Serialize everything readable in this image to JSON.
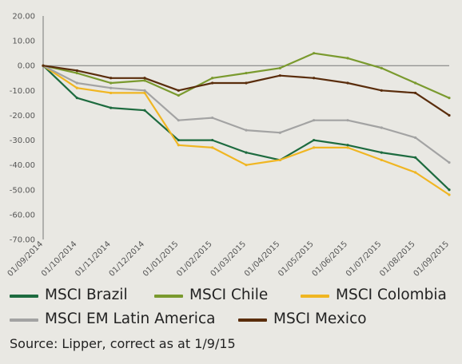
{
  "chart_data": {
    "type": "line",
    "title": "",
    "xlabel": "",
    "ylabel": "",
    "ylim": [
      -70,
      20
    ],
    "yticks": [
      "20.00",
      "10.00",
      "0.00",
      "-10.00",
      "-20.00",
      "-30.00",
      "-40.00",
      "-50.00",
      "-60.00",
      "-70.00"
    ],
    "x": [
      "01/09/2014",
      "01/10/2014",
      "01/11/2014",
      "01/12/2014",
      "01/01/2015",
      "01/02/2015",
      "01/03/2015",
      "01/04/2015",
      "01/05/2015",
      "01/06/2015",
      "01/07/2015",
      "01/08/2015",
      "01/09/2015"
    ],
    "grid": false,
    "legend_position": "bottom",
    "series": [
      {
        "name": "MSCI Brazil",
        "color": "#1d6b3f",
        "values": [
          0,
          -13,
          -17,
          -18,
          -30,
          -30,
          -35,
          -38,
          -30,
          -32,
          -35,
          -37,
          -50
        ]
      },
      {
        "name": "MSCI Chile",
        "color": "#7a9a2e",
        "values": [
          0,
          -3,
          -7,
          -6,
          -12,
          -5,
          -3,
          -1,
          5,
          3,
          -1,
          -7,
          -13
        ]
      },
      {
        "name": "MSCI Colombia",
        "color": "#f0b622",
        "values": [
          0,
          -9,
          -11,
          -11,
          -32,
          -33,
          -40,
          -38,
          -33,
          -33,
          -38,
          -43,
          -52
        ]
      },
      {
        "name": "MSCI EM Latin America",
        "color": "#a3a3a3",
        "values": [
          0,
          -7,
          -9,
          -10,
          -22,
          -21,
          -26,
          -27,
          -22,
          -22,
          -25,
          -29,
          -39
        ]
      },
      {
        "name": "MSCI Mexico",
        "color": "#5a2d0c",
        "values": [
          0,
          -2,
          -5,
          -5,
          -10,
          -7,
          -7,
          -4,
          -5,
          -7,
          -10,
          -11,
          -20
        ]
      }
    ]
  },
  "legend_rows": [
    [
      "MSCI Brazil",
      "MSCI Chile",
      "MSCI Colombia"
    ],
    [
      "MSCI EM Latin America",
      "MSCI Mexico"
    ]
  ],
  "source": "Source: Lipper, correct as at 1/9/15"
}
